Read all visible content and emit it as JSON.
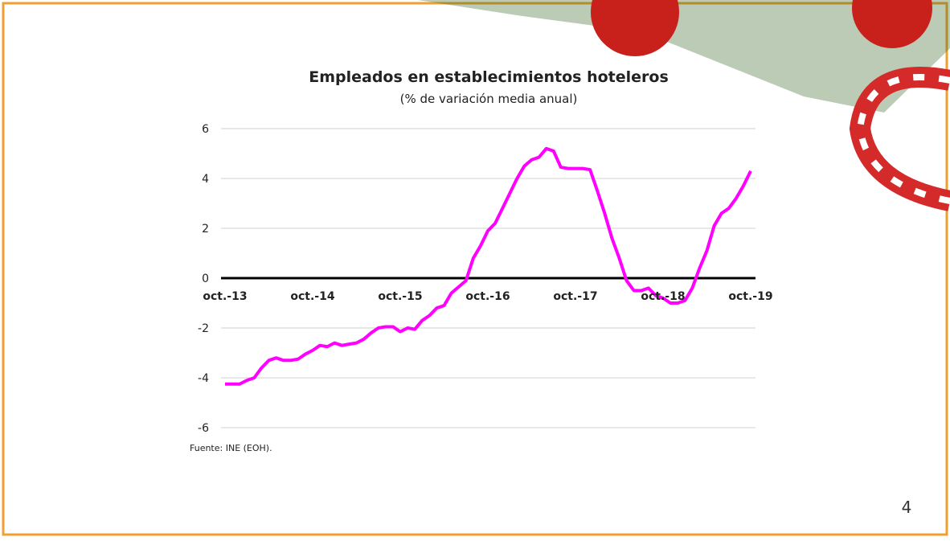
{
  "chart_data": {
    "type": "line",
    "title": "Empleados en establecimientos hoteleros",
    "subtitle": "(% de variación media anual)",
    "source": "Fuente: INE (EOH).",
    "categories": [
      "oct.-13",
      null,
      null,
      null,
      null,
      null,
      null,
      null,
      null,
      null,
      null,
      null,
      "oct.-14",
      null,
      null,
      null,
      null,
      null,
      null,
      null,
      null,
      null,
      null,
      null,
      "oct.-15",
      null,
      null,
      null,
      null,
      null,
      null,
      null,
      null,
      null,
      null,
      null,
      "oct.-16",
      null,
      null,
      null,
      null,
      null,
      null,
      null,
      null,
      null,
      null,
      null,
      "oct.-17",
      null,
      null,
      null,
      null,
      null,
      null,
      null,
      null,
      null,
      null,
      null,
      "oct.-18",
      null,
      null,
      null,
      null,
      null,
      null,
      null,
      null,
      null,
      null,
      null,
      "oct.-19"
    ],
    "series": [
      {
        "color": "#ff00ff",
        "values": [
          -4.25,
          -4.25,
          -4.25,
          -4.1,
          -4.0,
          -3.6,
          -3.3,
          -3.2,
          -3.3,
          -3.3,
          -3.25,
          -3.05,
          -2.9,
          -2.7,
          -2.75,
          -2.6,
          -2.7,
          -2.65,
          -2.6,
          -2.45,
          -2.2,
          -2.0,
          -1.95,
          -1.95,
          -2.15,
          -2.0,
          -2.05,
          -1.7,
          -1.5,
          -1.2,
          -1.1,
          -0.6,
          -0.35,
          -0.1,
          0.8,
          1.3,
          1.9,
          2.2,
          2.8,
          3.4,
          4.0,
          4.5,
          4.75,
          4.85,
          5.2,
          5.1,
          4.45,
          4.4,
          4.4,
          4.4,
          4.35,
          3.5,
          2.6,
          1.6,
          0.8,
          -0.1,
          -0.5,
          -0.5,
          -0.4,
          -0.7,
          -0.8,
          -1.0,
          -1.0,
          -0.9,
          -0.4,
          0.4,
          1.1,
          2.1,
          2.6,
          2.8,
          3.2,
          3.7,
          4.3
        ]
      }
    ],
    "ylim": [
      -6,
      6
    ],
    "yticks": [
      -6,
      -4,
      -2,
      0,
      2,
      4,
      6
    ],
    "grid": true
  },
  "page_number": "4"
}
